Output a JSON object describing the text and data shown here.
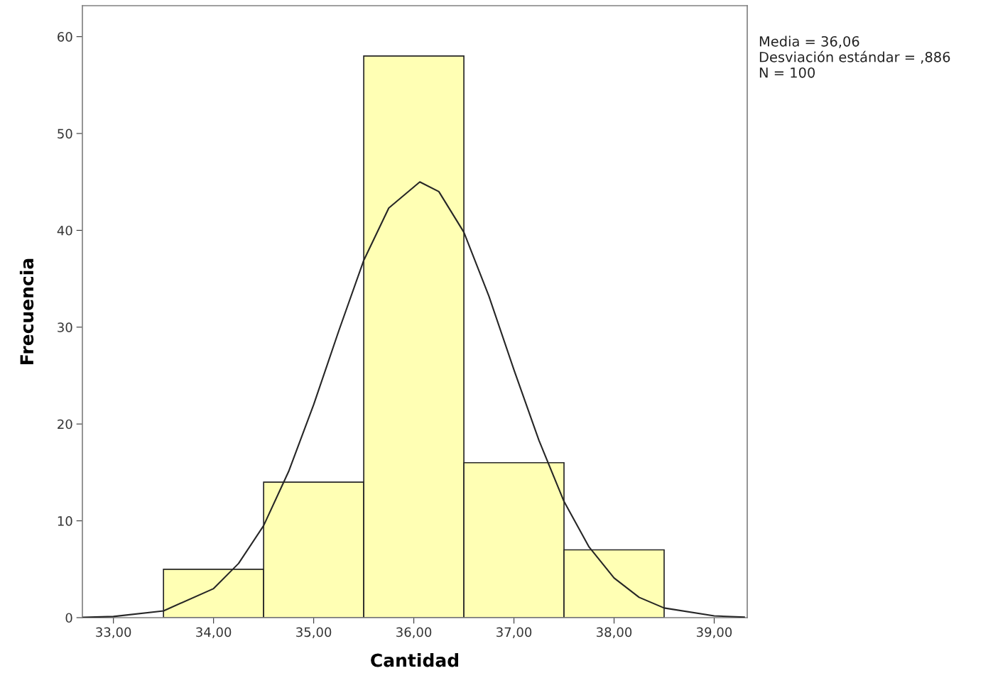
{
  "chart_data": {
    "type": "histogram",
    "xlabel": "Cantidad",
    "ylabel": "Frecuencia",
    "annotations": [
      "Media = 36,06",
      "Desviación estándar = ,886",
      "N = 100"
    ],
    "bins": [
      33.5,
      34.5,
      35.5,
      36.5,
      37.5,
      38.5
    ],
    "series": [
      {
        "type": "histogram",
        "color": "#ffffb4",
        "values": [
          5,
          14,
          58,
          16,
          7
        ]
      },
      {
        "type": "line",
        "color": "#262626",
        "x": [
          32.7,
          33.0,
          33.5,
          34.0,
          34.25,
          34.5,
          34.75,
          35.0,
          35.25,
          35.5,
          35.75,
          36.06,
          36.25,
          36.5,
          36.75,
          37.0,
          37.25,
          37.5,
          37.75,
          38.0,
          38.25,
          38.5,
          39.0,
          39.3
        ],
        "values": [
          0.03,
          0.12,
          0.7,
          3.0,
          5.6,
          9.5,
          15.1,
          22.0,
          29.6,
          36.9,
          42.3,
          45.0,
          44.0,
          39.8,
          33.2,
          25.6,
          18.3,
          12.0,
          7.3,
          4.1,
          2.1,
          1.0,
          0.18,
          0.06
        ]
      }
    ],
    "xlim": [
      32.69,
      39.33
    ],
    "ylim": [
      0,
      63.2
    ],
    "xticks": [
      {
        "value": 33,
        "label": "33,00"
      },
      {
        "value": 34,
        "label": "34,00"
      },
      {
        "value": 35,
        "label": "35,00"
      },
      {
        "value": 36,
        "label": "36,00"
      },
      {
        "value": 37,
        "label": "37,00"
      },
      {
        "value": 38,
        "label": "38,00"
      },
      {
        "value": 39,
        "label": "39,00"
      }
    ],
    "yticks": [
      0,
      10,
      20,
      30,
      40,
      50,
      60
    ],
    "grid": false
  }
}
